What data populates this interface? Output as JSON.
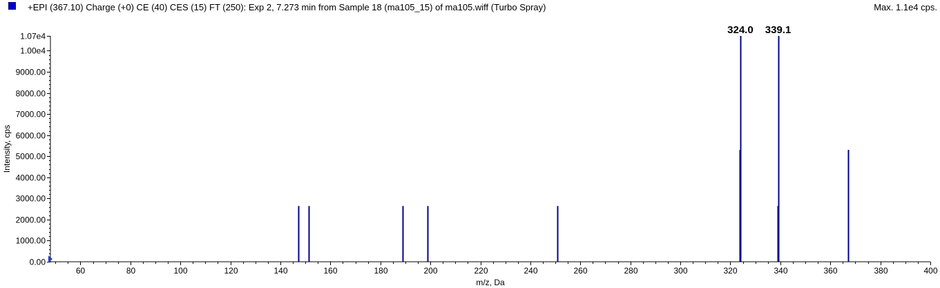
{
  "header": {
    "title": "+EPI (367.10) Charge (+0) CE (40) CES (15) FT (250): Exp 2, 7.273 min from Sample 18 (ma105_15) of ma105.wiff (Turbo Spray)",
    "max_label": "Max. 1.1e4 cps."
  },
  "colors": {
    "series": "#00008b",
    "marker": "#0000cc",
    "axis": "#000000",
    "origin_marker": "#1f3fbf"
  },
  "chart_data": {
    "type": "bar",
    "title": "+EPI (367.10) Charge (+0) CE (40) CES (15) FT (250): Exp 2, 7.273 min from Sample 18 (ma105_15) of ma105.wiff (Turbo Spray)",
    "xlabel": "m/z, Da",
    "ylabel": "Intensity, cps",
    "xlim": [
      48,
      400
    ],
    "ylim": [
      0,
      10700
    ],
    "x_ticks": [
      60,
      80,
      100,
      120,
      140,
      160,
      180,
      200,
      220,
      240,
      260,
      280,
      300,
      320,
      340,
      360,
      380,
      400
    ],
    "x_tick_labels": [
      "60",
      "80",
      "100",
      "120",
      "140",
      "160",
      "180",
      "200",
      "220",
      "240",
      "260",
      "280",
      "300",
      "320",
      "340",
      "360",
      "380",
      "400"
    ],
    "y_ticks": [
      0,
      1000,
      2000,
      3000,
      4000,
      5000,
      6000,
      7000,
      8000,
      9000,
      10000,
      10700
    ],
    "y_tick_labels": [
      "0.00",
      "1000.00",
      "2000.00",
      "3000.00",
      "4000.00",
      "5000.00",
      "6000.00",
      "7000.00",
      "8000.00",
      "9000.00",
      "1.00e4",
      "1.07e4"
    ],
    "peaks": [
      {
        "mz": 147.2,
        "intensity": 2640
      },
      {
        "mz": 151.2,
        "intensity": 2640
      },
      {
        "mz": 188.9,
        "intensity": 2640
      },
      {
        "mz": 198.9,
        "intensity": 2640
      },
      {
        "mz": 250.9,
        "intensity": 2640
      },
      {
        "mz": 323.8,
        "intensity": 5300
      },
      {
        "mz": 324.0,
        "intensity": 10700
      },
      {
        "mz": 338.9,
        "intensity": 2640
      },
      {
        "mz": 339.1,
        "intensity": 10700
      },
      {
        "mz": 367.0,
        "intensity": 5300
      }
    ],
    "peak_labels": [
      {
        "mz": 324.0,
        "text": "324.0"
      },
      {
        "mz": 339.1,
        "text": "339.1"
      }
    ],
    "grid": false
  }
}
